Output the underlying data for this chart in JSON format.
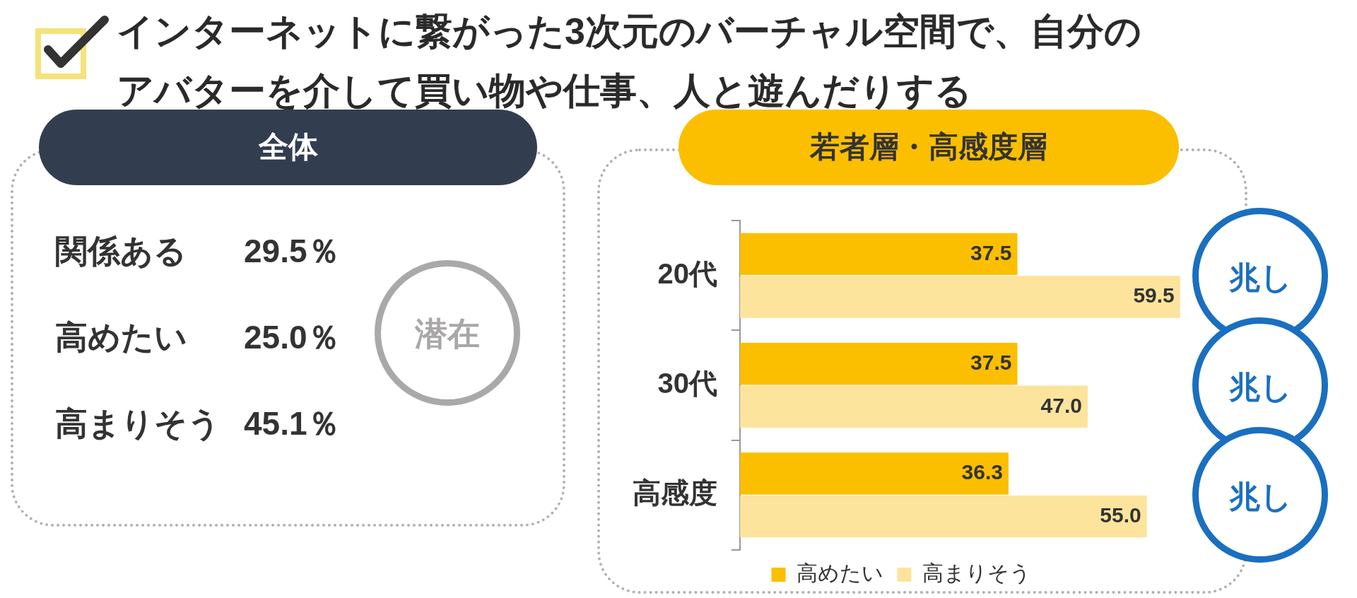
{
  "chart_data": [
    {
      "type": "other",
      "title": "インターネットに繋がった3次元のバーチャル空間で、自分のアバターを介して買い物や仕事、人と遊んだりする",
      "subtitle": "全体",
      "annotations": [
        "関係ある",
        "29.5％",
        "高めたい",
        "25.0％",
        "高まりそう",
        "45.1％",
        "潜在"
      ]
    },
    {
      "type": "bar",
      "orientation": "horizontal",
      "title": "若者層・高感度層",
      "categories": [
        "20代",
        "30代",
        "高感度"
      ],
      "series": [
        {
          "name": "高めたい",
          "color": "#fbbf00",
          "values": [
            37.5,
            37.5,
            36.3
          ],
          "value_labels": [
            "37.5",
            "37.5",
            "36.3"
          ]
        },
        {
          "name": "高まりそう",
          "color": "#fde49c",
          "values": [
            59.5,
            47.0,
            55.0
          ],
          "value_labels": [
            "59.5",
            "47.0",
            "55.0"
          ]
        }
      ],
      "tick_labels": "y",
      "grid": false,
      "legend": "bottom",
      "annotations": [
        "兆し",
        "兆し",
        "兆し"
      ]
    }
  ]
}
